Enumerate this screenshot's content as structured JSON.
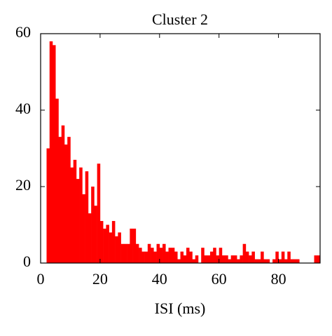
{
  "chart_data": {
    "type": "histogram",
    "title": "Cluster 2",
    "x_label": "ISI (ms)",
    "color": "#ff0000",
    "bins": [
      2,
      3,
      4,
      5,
      6,
      7,
      8,
      9,
      10,
      11,
      12,
      13,
      14,
      15,
      16,
      17,
      18,
      19,
      20,
      21,
      22,
      23,
      24,
      25,
      26,
      27,
      28,
      29,
      30,
      31,
      32,
      33,
      34,
      35,
      36,
      37,
      38,
      39,
      40,
      41,
      42,
      43,
      44,
      45,
      46,
      47,
      48,
      49,
      50,
      51,
      52,
      53,
      54,
      55,
      56,
      57,
      58,
      59,
      60,
      61,
      62,
      63,
      64,
      65,
      66,
      67,
      68,
      69,
      70,
      71,
      72,
      73,
      74,
      75,
      76,
      77,
      78,
      79,
      80,
      81,
      82,
      83,
      84,
      85,
      86,
      87,
      88,
      89,
      90,
      91,
      92,
      93,
      94
    ],
    "values": [
      30,
      58,
      57,
      43,
      33,
      36,
      31,
      33,
      25,
      27,
      22,
      25,
      18,
      24,
      13,
      20,
      15,
      26,
      11,
      9,
      10,
      8,
      11,
      7,
      8,
      5,
      5,
      5,
      9,
      9,
      5,
      4,
      3,
      3,
      5,
      4,
      3,
      5,
      4,
      5,
      3,
      4,
      4,
      3,
      1,
      3,
      2,
      4,
      3,
      1,
      2,
      0,
      4,
      2,
      2,
      3,
      4,
      2,
      4,
      2,
      2,
      1,
      2,
      2,
      1,
      2,
      5,
      3,
      2,
      3,
      1,
      1,
      3,
      1,
      1,
      0,
      1,
      3,
      1,
      3,
      1,
      3,
      1,
      1,
      1,
      0,
      0,
      0,
      0,
      0,
      2,
      2
    ],
    "xlim": [
      0,
      94
    ],
    "ylim": [
      0,
      60
    ],
    "xticks": [
      0,
      20,
      40,
      60,
      80
    ],
    "yticks": [
      0,
      20,
      40,
      60
    ]
  }
}
